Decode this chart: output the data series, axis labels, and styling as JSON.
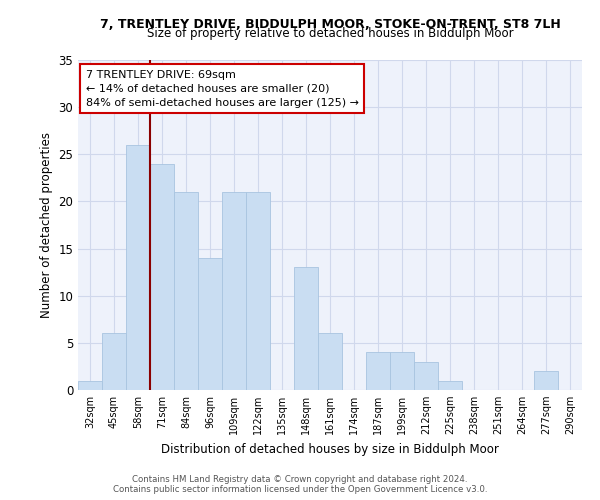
{
  "title1": "7, TRENTLEY DRIVE, BIDDULPH MOOR, STOKE-ON-TRENT, ST8 7LH",
  "title2": "Size of property relative to detached houses in Biddulph Moor",
  "xlabel": "Distribution of detached houses by size in Biddulph Moor",
  "ylabel": "Number of detached properties",
  "categories": [
    "32sqm",
    "45sqm",
    "58sqm",
    "71sqm",
    "84sqm",
    "96sqm",
    "109sqm",
    "122sqm",
    "135sqm",
    "148sqm",
    "161sqm",
    "174sqm",
    "187sqm",
    "199sqm",
    "212sqm",
    "225sqm",
    "238sqm",
    "251sqm",
    "264sqm",
    "277sqm",
    "290sqm"
  ],
  "values": [
    1,
    6,
    26,
    24,
    21,
    14,
    21,
    21,
    0,
    13,
    6,
    0,
    4,
    4,
    3,
    1,
    0,
    0,
    0,
    2,
    0
  ],
  "bar_color": "#c9ddf2",
  "bar_edge_color": "#a8c4e0",
  "subject_line_color": "#8b0000",
  "annotation_line1": "7 TRENTLEY DRIVE: 69sqm",
  "annotation_line2": "← 14% of detached houses are smaller (20)",
  "annotation_line3": "84% of semi-detached houses are larger (125) →",
  "annotation_box_color": "#ffffff",
  "annotation_box_edge_color": "#cc0000",
  "ylim": [
    0,
    35
  ],
  "yticks": [
    0,
    5,
    10,
    15,
    20,
    25,
    30,
    35
  ],
  "footer1": "Contains HM Land Registry data © Crown copyright and database right 2024.",
  "footer2": "Contains public sector information licensed under the Open Government Licence v3.0.",
  "bg_color": "#eef2fb",
  "grid_color": "#d0d8ec"
}
